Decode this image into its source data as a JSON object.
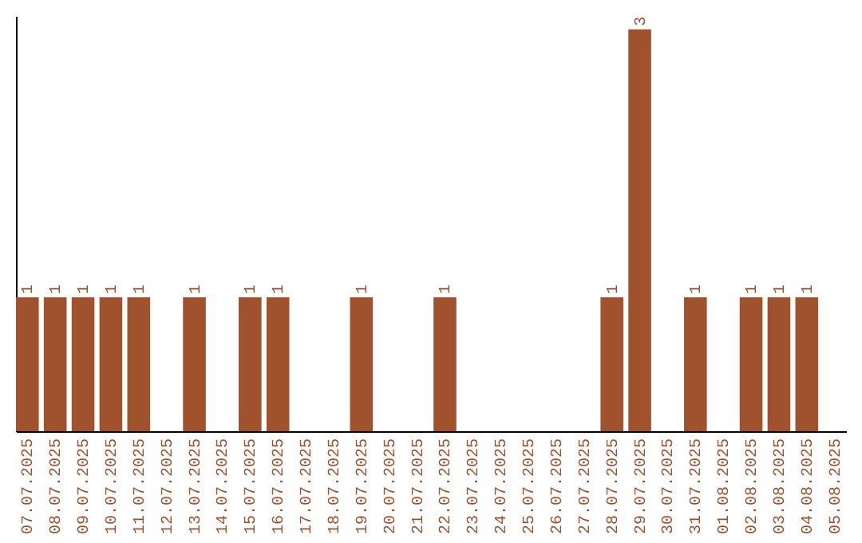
{
  "chart_data": {
    "type": "bar",
    "categories": [
      "07.07.2025",
      "08.07.2025",
      "09.07.2025",
      "10.07.2025",
      "11.07.2025",
      "12.07.2025",
      "13.07.2025",
      "14.07.2025",
      "15.07.2025",
      "16.07.2025",
      "17.07.2025",
      "18.07.2025",
      "19.07.2025",
      "20.07.2025",
      "21.07.2025",
      "22.07.2025",
      "23.07.2025",
      "24.07.2025",
      "25.07.2025",
      "26.07.2025",
      "27.07.2025",
      "28.07.2025",
      "29.07.2025",
      "30.07.2025",
      "31.07.2025",
      "01.08.2025",
      "02.08.2025",
      "03.08.2025",
      "04.08.2025",
      "05.08.2025"
    ],
    "values": [
      1,
      1,
      1,
      1,
      1,
      0,
      1,
      0,
      1,
      1,
      0,
      0,
      1,
      0,
      0,
      1,
      0,
      0,
      0,
      0,
      0,
      1,
      3,
      0,
      1,
      0,
      1,
      1,
      1,
      0
    ],
    "value_labels": [
      "1",
      "1",
      "1",
      "1",
      "1",
      null,
      "1",
      null,
      "1",
      "1",
      null,
      null,
      "1",
      null,
      null,
      "1",
      null,
      null,
      null,
      null,
      null,
      "1",
      "3",
      null,
      "1",
      null,
      "1",
      "1",
      "1",
      null
    ],
    "color": "#a0522d",
    "ylim": [
      0,
      3.1
    ],
    "tick_labels": "x"
  }
}
